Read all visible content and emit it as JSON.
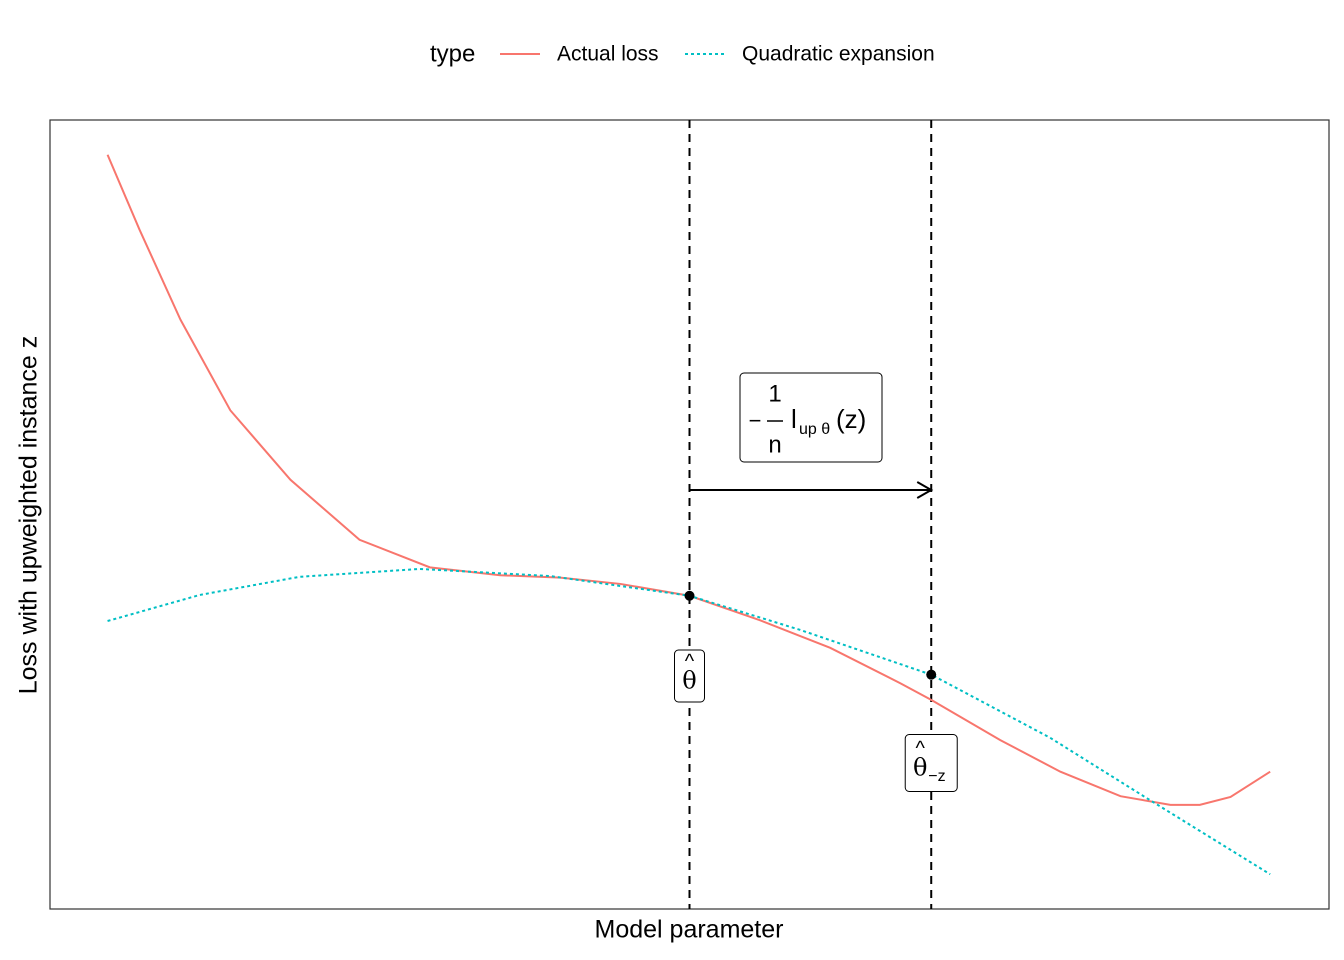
{
  "chart_data": {
    "type": "line",
    "xlabel": "Model parameter",
    "ylabel": "Loss with upweighted instance z",
    "legend_title": "type",
    "legend_position": "top",
    "xlim": [
      0,
      100
    ],
    "ylim": [
      0,
      100
    ],
    "series": [
      {
        "name": "Actual loss",
        "color": "#f8766d",
        "dash": "solid",
        "x": [
          4.5,
          7.0,
          10.2,
          14.1,
          18.8,
          24.2,
          29.7,
          35.2,
          39.9,
          44.6,
          50.0,
          55.5,
          61.0,
          66.5,
          68.9,
          74.3,
          79.0,
          83.7,
          87.6,
          89.9,
          92.3,
          95.4
        ],
        "values": [
          95.6,
          86.1,
          74.7,
          63.2,
          54.4,
          46.8,
          43.3,
          42.3,
          42.0,
          41.2,
          39.7,
          36.6,
          33.1,
          28.6,
          26.5,
          21.4,
          17.4,
          14.3,
          13.2,
          13.2,
          14.2,
          17.4
        ]
      },
      {
        "name": "Quadratic expansion",
        "color": "#00bfc4",
        "dash": "dotted",
        "x": [
          4.5,
          11.7,
          19.5,
          28.9,
          39.1,
          50.0,
          58.6,
          68.9,
          78.2,
          86.0,
          95.4
        ],
        "values": [
          36.5,
          39.8,
          42.1,
          43.1,
          42.2,
          39.7,
          35.4,
          29.7,
          21.7,
          13.8,
          4.4
        ]
      }
    ],
    "markers": [
      {
        "x": 50.0,
        "y": 39.7,
        "hat": "^",
        "symbol": "θ"
      },
      {
        "x": 68.9,
        "y": 29.7,
        "hat": "^",
        "symbol": "θ",
        "subscript": "−z"
      }
    ],
    "arrow": {
      "from": 50.0,
      "to": 68.9,
      "y": 53.1
    },
    "formula": {
      "sign": "−",
      "numerator": "1",
      "denominator": "n",
      "function": "l",
      "subscript": "up θ",
      "argument": "(z)"
    }
  }
}
